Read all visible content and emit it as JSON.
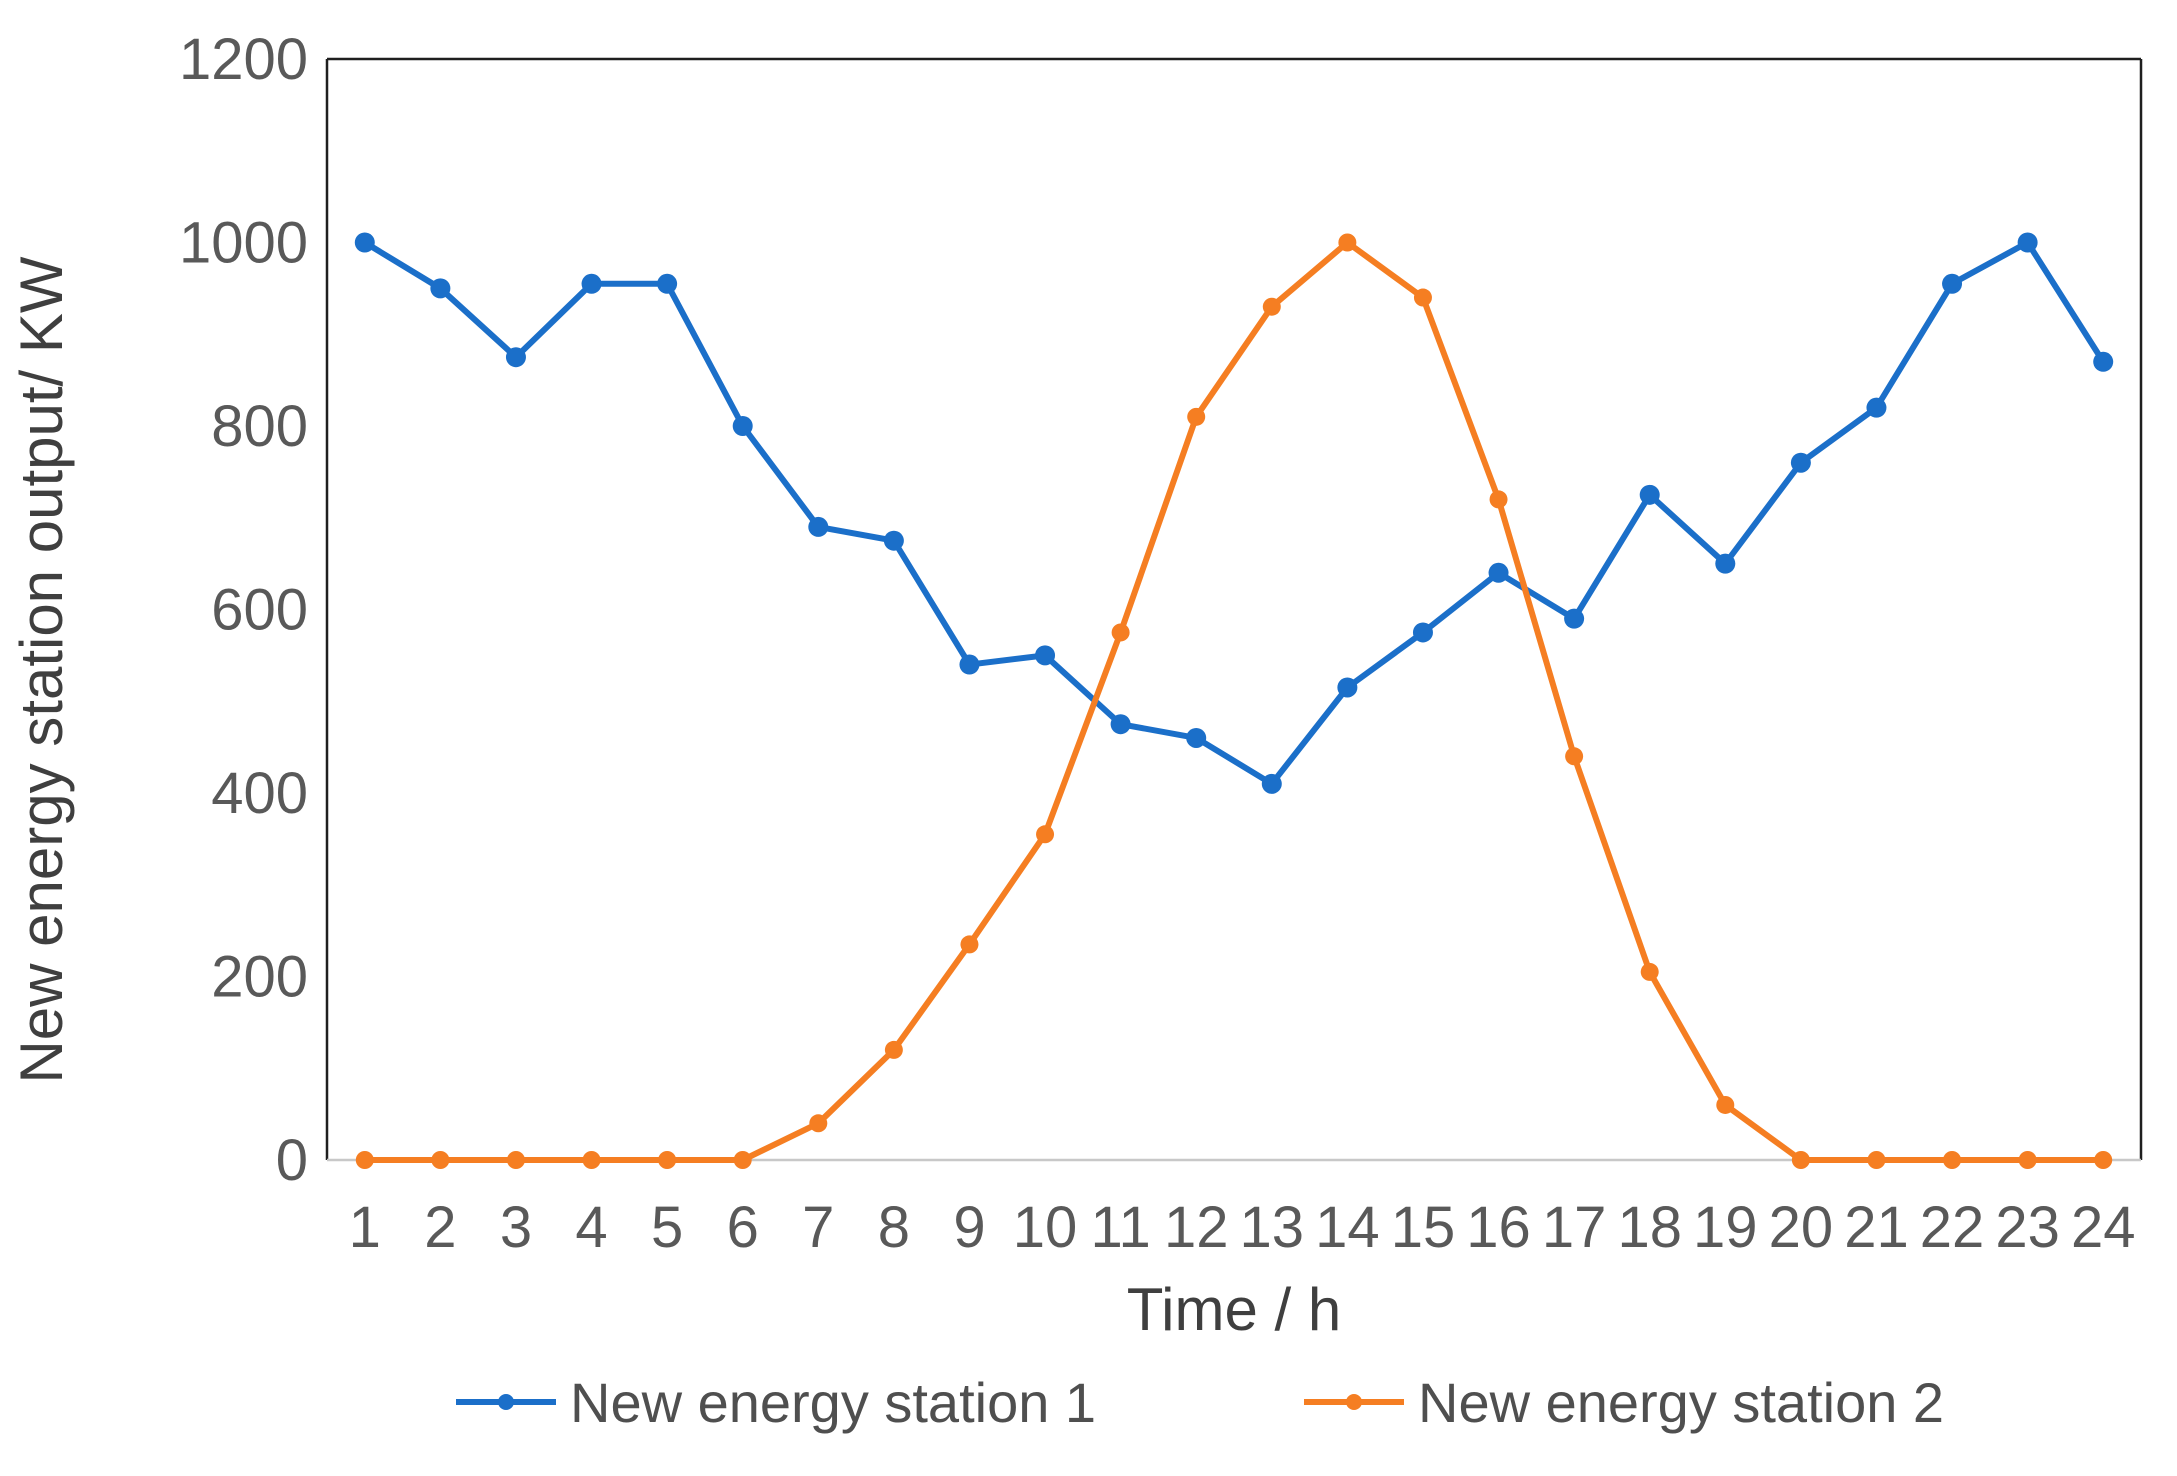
{
  "chart_data": {
    "type": "line",
    "title": "",
    "xlabel": "Time / h",
    "ylabel": "New energy station output/ KW",
    "x": [
      1,
      2,
      3,
      4,
      5,
      6,
      7,
      8,
      9,
      10,
      11,
      12,
      13,
      14,
      15,
      16,
      17,
      18,
      19,
      20,
      21,
      22,
      23,
      24
    ],
    "y_ticks": [
      0,
      200,
      400,
      600,
      800,
      1000,
      1200
    ],
    "ylim": [
      0,
      1200
    ],
    "xlim_categories": 24,
    "grid": false,
    "legend_position": "bottom",
    "series": [
      {
        "name": "New energy station 1",
        "color": "#1b6fc9",
        "marker": "circle",
        "values": [
          1000,
          950,
          875,
          955,
          955,
          800,
          690,
          675,
          540,
          550,
          475,
          460,
          410,
          515,
          575,
          640,
          590,
          725,
          650,
          760,
          820,
          955,
          1000,
          870
        ]
      },
      {
        "name": "New energy station 2",
        "color": "#f57e22",
        "marker": "circle",
        "values": [
          0,
          0,
          0,
          0,
          0,
          0,
          40,
          120,
          235,
          355,
          575,
          810,
          930,
          1000,
          940,
          720,
          440,
          205,
          60,
          0,
          0,
          0,
          0,
          0
        ]
      }
    ]
  },
  "colors": {
    "background": "#ffffff",
    "tick_label": "#595959",
    "axis_title": "#3f3f3f",
    "legend_text": "#4f4f4f",
    "border_dark": "#1f1f1f",
    "border_light": "#c8c8c8"
  }
}
